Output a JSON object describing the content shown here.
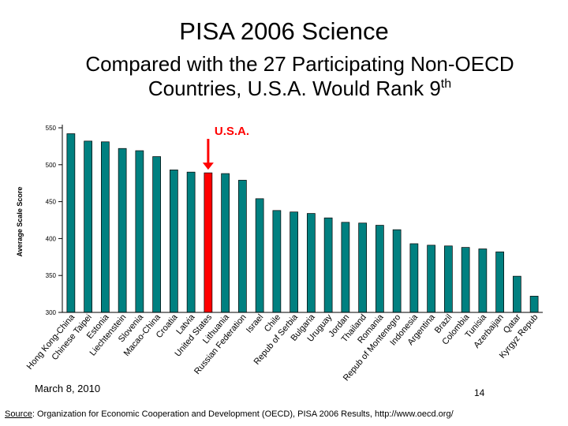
{
  "slide": {
    "title": "PISA 2006 Science",
    "subtitle_line1": "Compared with the 27 Participating Non-OECD",
    "subtitle_line2": "Countries, U.S.A. Would Rank 9",
    "subtitle_sup": "th",
    "date": "March 8, 2010",
    "page_number": "14",
    "source_label": "Source",
    "source_text": ": Organization for Economic Cooperation and Development (OECD), PISA 2006 Results, http://www.oecd.org/"
  },
  "colors": {
    "bar": "#008080",
    "highlight": "#ff0000",
    "arrow": "#ff0000",
    "annotation": "#ff0000"
  },
  "chart_data": {
    "type": "bar",
    "ylabel": "Average Scale Score",
    "ylim": [
      300,
      550
    ],
    "yticks": [
      300,
      350,
      400,
      450,
      500,
      550
    ],
    "annotation": "U.S.A.",
    "highlight_category": "United States",
    "categories": [
      "Hong Kong-China",
      "Chinese Taipei",
      "Estonia",
      "Liechtenstein",
      "Slovenia",
      "Macao-China",
      "Croatia",
      "Latvia",
      "United States",
      "Lithuania",
      "Russian Federation",
      "Israel",
      "Chile",
      "Repub of Serbia",
      "Bulgaria",
      "Uruguay",
      "Jordan",
      "Thailand",
      "Romania",
      "Repub of Montenegro",
      "Indonesia",
      "Argentina",
      "Brazil",
      "Colombia",
      "Tunisia",
      "Azerbaijan",
      "Qatar",
      "Kyrgyz Repub"
    ],
    "values": [
      542,
      532,
      531,
      522,
      519,
      511,
      493,
      490,
      489,
      488,
      479,
      454,
      438,
      436,
      434,
      428,
      422,
      421,
      418,
      412,
      393,
      391,
      390,
      388,
      386,
      382,
      349,
      322
    ]
  }
}
